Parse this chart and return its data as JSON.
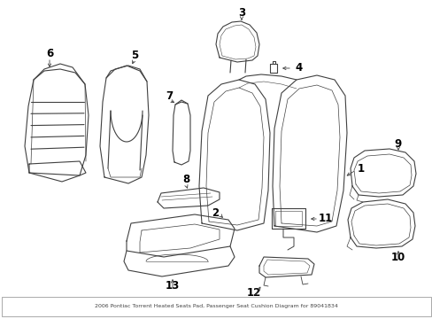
{
  "background_color": "#ffffff",
  "line_color": "#404040",
  "label_color": "#000000",
  "figsize": [
    4.89,
    3.6
  ],
  "dpi": 100,
  "label_fontsize": 8.5
}
